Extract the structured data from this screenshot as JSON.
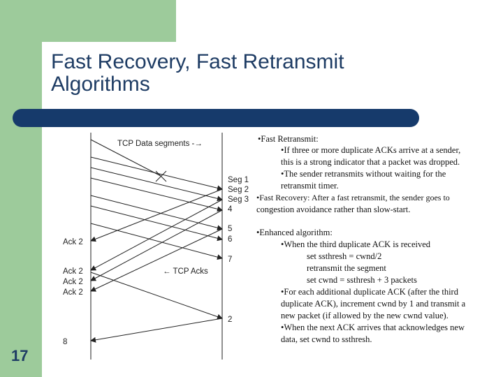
{
  "slide": {
    "title_line1": "Fast Recovery, Fast Retransmit",
    "title_line2": "Algorithms",
    "number": "17"
  },
  "diagram": {
    "data_label": "TCP Data segments -→",
    "ack_label": "← TCP Acks",
    "segments": [
      "Seg 1",
      "Seg 2",
      "Seg 3",
      "4",
      "5",
      "6",
      "7",
      "2"
    ],
    "acks": [
      "Ack 2",
      "Ack 2",
      "Ack 2",
      "Ack 2",
      "8"
    ]
  },
  "notes": {
    "lines": [
      "•Fast Retransmit:",
      "•If three or more duplicate ACKs arrive at a sender,",
      "this is a strong  indicator that a packet was dropped.",
      "•The sender retransmits without waiting for the",
      "retransmit timer.",
      "•Fast Recovery:    After a fast retransmit, the sender goes to",
      "congestion avoidance rather than slow-start.",
      "•Enhanced algorithm:",
      "•When the third duplicate ACK is received",
      "set ssthresh = cwnd/2",
      "retransmit the segment",
      "set cwnd = ssthresh + 3  packets",
      "•For each additional duplicate ACK (after the third",
      "duplicate ACK), increment cwnd by 1 and transmit a",
      "new packet (if allowed by the new cwnd value).",
      "•When the next ACK arrives that acknowledges new",
      "data, set cwnd to ssthresh."
    ]
  }
}
